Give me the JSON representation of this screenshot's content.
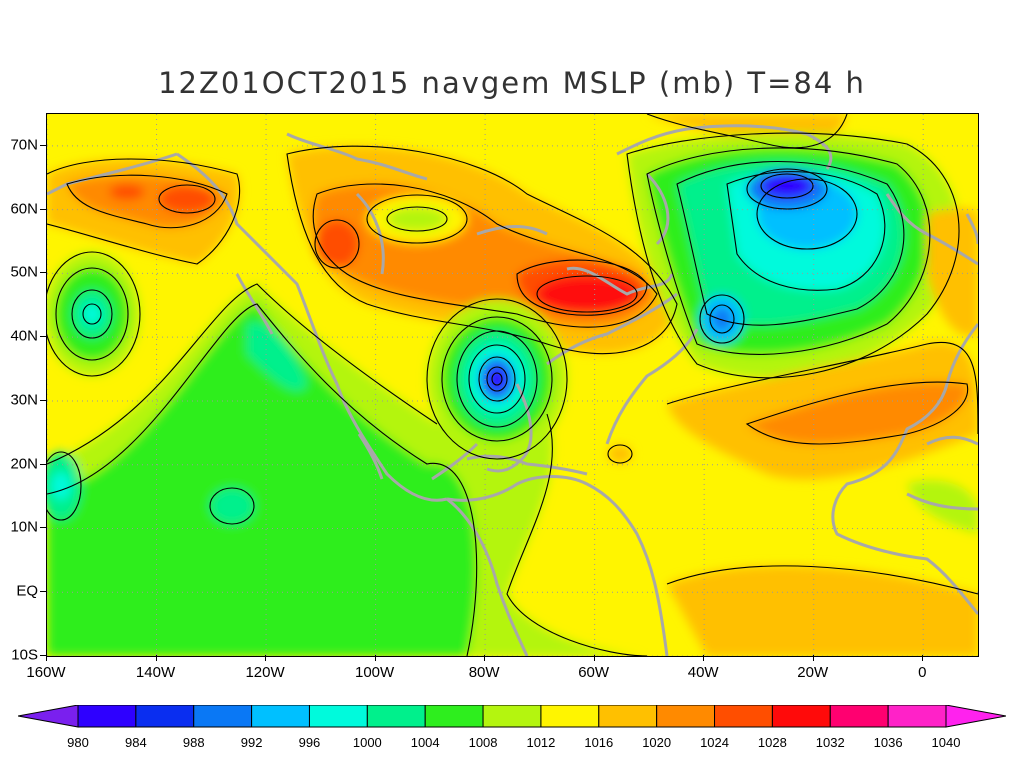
{
  "title": "12Z01OCT2015 navgem MSLP (mb) T=84 h",
  "map": {
    "lon_range": [
      -160,
      10
    ],
    "lat_range": [
      -10,
      75
    ],
    "lat_ticks": [
      {
        "value": 70,
        "label": "70N"
      },
      {
        "value": 60,
        "label": "60N"
      },
      {
        "value": 50,
        "label": "50N"
      },
      {
        "value": 40,
        "label": "40N"
      },
      {
        "value": 30,
        "label": "30N"
      },
      {
        "value": 20,
        "label": "20N"
      },
      {
        "value": 10,
        "label": "10N"
      },
      {
        "value": 0,
        "label": "EQ"
      },
      {
        "value": -10,
        "label": "10S"
      }
    ],
    "lon_ticks": [
      {
        "value": -160,
        "label": "160W"
      },
      {
        "value": -140,
        "label": "140W"
      },
      {
        "value": -120,
        "label": "120W"
      },
      {
        "value": -100,
        "label": "100W"
      },
      {
        "value": -80,
        "label": "80W"
      },
      {
        "value": -60,
        "label": "60W"
      },
      {
        "value": -40,
        "label": "40W"
      },
      {
        "value": -20,
        "label": "20W"
      },
      {
        "value": 0,
        "label": "0"
      }
    ],
    "grid": "dotted",
    "colors": {
      "coastline": "#a8a8a8",
      "contour": "#000000"
    }
  },
  "colorbar": {
    "labels": [
      "980",
      "984",
      "988",
      "992",
      "996",
      "1000",
      "1004",
      "1008",
      "1012",
      "1016",
      "1020",
      "1024",
      "1028",
      "1032",
      "1036",
      "1040"
    ],
    "colors": [
      "#7a20ee",
      "#2e00ff",
      "#0a2ef0",
      "#0a78f5",
      "#00c0ff",
      "#00fadc",
      "#00f08c",
      "#2eee1e",
      "#b4f50f",
      "#fff500",
      "#ffc000",
      "#ff8a00",
      "#ff4e00",
      "#ff0a0a",
      "#ff0070",
      "#ff22c8",
      "#ff22ee"
    ],
    "extend": "both"
  },
  "systems": [
    {
      "name": "low",
      "lon": -78,
      "lat": 33,
      "pressure": 984
    },
    {
      "name": "low",
      "lon": -25,
      "lat": 63,
      "pressure": 984
    },
    {
      "name": "low",
      "lon": -36,
      "lat": 42,
      "pressure": 998
    },
    {
      "name": "low",
      "lon": -153,
      "lat": 43,
      "pressure": 1002
    },
    {
      "name": "low",
      "lon": -157,
      "lat": 16,
      "pressure": 1004
    },
    {
      "name": "low",
      "lon": -126,
      "lat": 13,
      "pressure": 1004
    },
    {
      "name": "high",
      "lon": -62,
      "lat": 46,
      "pressure": 1030
    },
    {
      "name": "high",
      "lon": -135,
      "lat": 62,
      "pressure": 1026
    },
    {
      "name": "high",
      "lon": -107,
      "lat": 53,
      "pressure": 1024
    },
    {
      "name": "high",
      "lon": -20,
      "lat": 34,
      "pressure": 1024
    },
    {
      "name": "high",
      "lon": -10,
      "lat": 0,
      "pressure": 1020
    }
  ]
}
